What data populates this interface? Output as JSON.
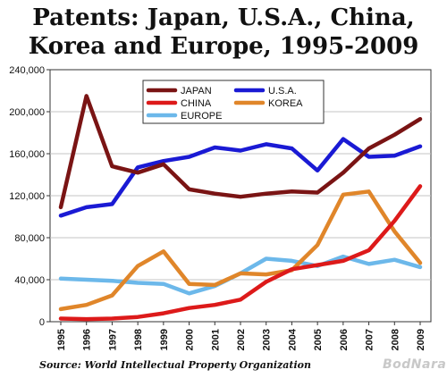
{
  "title_line1": "Patents: Japan, U.S.A., China,",
  "title_line2": "Korea and Europe, 1995-2009",
  "source": "Source: World Intellectual Property Organization",
  "watermark": "BodNara",
  "chart_data": {
    "type": "line",
    "title": "Patents: Japan, U.S.A., China, Korea and Europe, 1995-2009",
    "xlabel": "",
    "ylabel": "",
    "x": [
      "1995",
      "1996",
      "1997",
      "1998",
      "1999",
      "2000",
      "2001",
      "2002",
      "2003",
      "2004",
      "2005",
      "2006",
      "2007",
      "2008",
      "2009"
    ],
    "ylim": [
      0,
      240000
    ],
    "yticks": [
      0,
      40000,
      80000,
      120000,
      160000,
      200000,
      240000
    ],
    "ytick_labels": [
      "0",
      "40,000",
      "80,000",
      "120,000",
      "160,000",
      "200,000",
      "240,000"
    ],
    "grid": true,
    "legend_position": "top-left",
    "series": [
      {
        "name": "JAPAN",
        "color": "#7a1414",
        "values": [
          109000,
          215000,
          148000,
          142000,
          150000,
          126000,
          122000,
          119000,
          122000,
          124000,
          123000,
          142000,
          165000,
          178000,
          193000
        ]
      },
      {
        "name": "U.S.A.",
        "color": "#1a1ad4",
        "values": [
          101000,
          109000,
          112000,
          147000,
          153000,
          157000,
          166000,
          163000,
          169000,
          165000,
          144000,
          174000,
          157000,
          158000,
          167000
        ]
      },
      {
        "name": "CHINA",
        "color": "#dd1a1a",
        "values": [
          3000,
          2500,
          3000,
          4500,
          8000,
          13000,
          16000,
          21000,
          38000,
          50000,
          54000,
          58000,
          68000,
          96000,
          129000
        ]
      },
      {
        "name": "KOREA",
        "color": "#e0862a",
        "values": [
          12000,
          16000,
          25000,
          53000,
          67000,
          36000,
          35000,
          46000,
          45000,
          49000,
          73000,
          121000,
          124000,
          86000,
          56000
        ]
      },
      {
        "name": "EUROPE",
        "color": "#6cb8ea",
        "values": [
          41000,
          40000,
          39000,
          37000,
          36000,
          27000,
          34000,
          46000,
          60000,
          58000,
          53000,
          62000,
          55000,
          59000,
          52000
        ]
      }
    ]
  }
}
